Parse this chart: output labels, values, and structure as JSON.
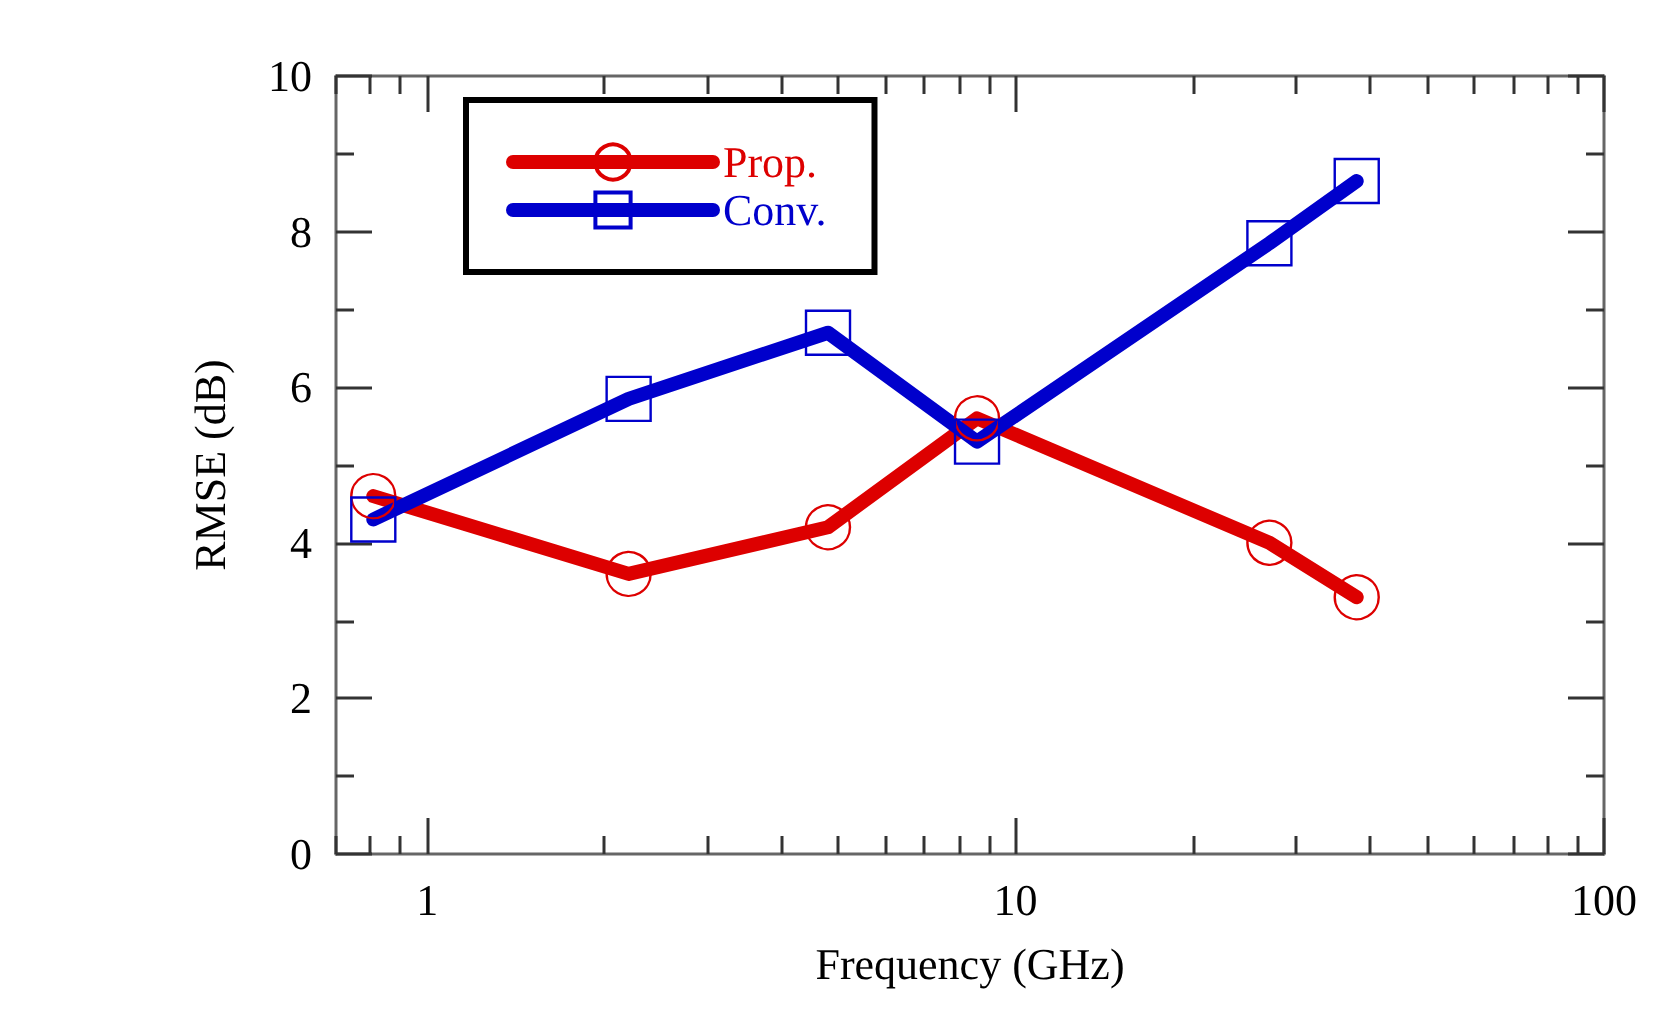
{
  "chart_data": {
    "type": "line",
    "xlabel": "Frequency (GHz)",
    "ylabel": "RMSE (dB)",
    "x": [
      0.81,
      2.2,
      4.8,
      8.6,
      27,
      38
    ],
    "series": [
      {
        "name": "Prop.",
        "color": "#dd0000",
        "marker": "circle",
        "values": [
          4.6,
          3.6,
          4.2,
          5.6,
          4.0,
          3.3
        ]
      },
      {
        "name": "Conv.",
        "color": "#0000cc",
        "marker": "square",
        "values": [
          4.3,
          5.85,
          6.7,
          5.3,
          7.85,
          8.65
        ]
      }
    ],
    "log": "x",
    "xlim": [
      0.7,
      100
    ],
    "xticks": [
      1,
      10,
      100
    ],
    "ylim": [
      0,
      10
    ],
    "yticks": [
      0,
      2,
      4,
      6,
      8,
      10
    ],
    "grid": false,
    "legend": "top left",
    "line_style": "solid"
  }
}
